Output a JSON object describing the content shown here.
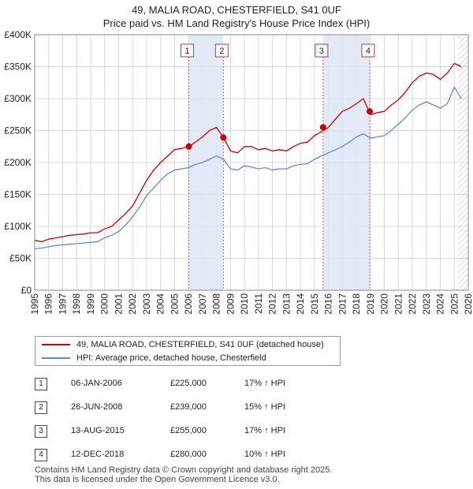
{
  "title": {
    "line1": "49, MALIA ROAD, CHESTERFIELD, S41 0UF",
    "line2": "Price paid vs. HM Land Registry's House Price Index (HPI)"
  },
  "colors": {
    "property_line": "#cc0000",
    "hpi_line": "#5b8ed0",
    "shade": "#dde6f6",
    "event_line": "#e06060",
    "grid": "#d8d8d8"
  },
  "chart_data": {
    "type": "line",
    "xlim": [
      1995,
      2026
    ],
    "ylim": [
      0,
      400000
    ],
    "y_ticks": [
      {
        "value": 0,
        "label": "£0"
      },
      {
        "value": 50000,
        "label": "£50K"
      },
      {
        "value": 100000,
        "label": "£100K"
      },
      {
        "value": 150000,
        "label": "£150K"
      },
      {
        "value": 200000,
        "label": "£200K"
      },
      {
        "value": 250000,
        "label": "£250K"
      },
      {
        "value": 300000,
        "label": "£300K"
      },
      {
        "value": 350000,
        "label": "£350K"
      },
      {
        "value": 400000,
        "label": "£400K"
      }
    ],
    "x_ticks": [
      "1995",
      "1996",
      "1997",
      "1998",
      "1999",
      "2000",
      "2001",
      "2002",
      "2003",
      "2004",
      "2005",
      "2006",
      "2007",
      "2008",
      "2009",
      "2010",
      "2011",
      "2012",
      "2013",
      "2014",
      "2015",
      "2016",
      "2017",
      "2018",
      "2019",
      "2020",
      "2021",
      "2022",
      "2023",
      "2024",
      "2025",
      "2026"
    ],
    "shaded_ranges": [
      [
        2006.02,
        2008.49
      ],
      [
        2015.62,
        2018.95
      ]
    ],
    "hatched_from": 2025.25,
    "series": [
      {
        "name": "49, MALIA ROAD, CHESTERFIELD, S41 0UF (detached house)",
        "x": [
          1995.0,
          1995.5,
          1996.0,
          1996.5,
          1997.0,
          1997.5,
          1998.0,
          1998.5,
          1999.0,
          1999.5,
          2000.0,
          2000.5,
          2001.0,
          2001.5,
          2002.0,
          2002.5,
          2003.0,
          2003.5,
          2004.0,
          2004.5,
          2005.0,
          2005.5,
          2006.0,
          2006.5,
          2007.0,
          2007.5,
          2008.0,
          2008.5,
          2009.0,
          2009.5,
          2010.0,
          2010.5,
          2011.0,
          2011.5,
          2012.0,
          2012.5,
          2013.0,
          2013.5,
          2014.0,
          2014.5,
          2015.0,
          2015.5,
          2016.0,
          2016.5,
          2017.0,
          2017.5,
          2018.0,
          2018.5,
          2019.0,
          2019.5,
          2020.0,
          2020.5,
          2021.0,
          2021.5,
          2022.0,
          2022.5,
          2023.0,
          2023.5,
          2024.0,
          2024.5,
          2025.0,
          2025.5
        ],
        "values": [
          78000,
          76000,
          80000,
          82000,
          84000,
          86000,
          87000,
          88000,
          90000,
          90000,
          96000,
          100000,
          110000,
          120000,
          132000,
          152000,
          172000,
          188000,
          200000,
          210000,
          220000,
          222000,
          225000,
          232000,
          240000,
          250000,
          255000,
          239000,
          218000,
          215000,
          225000,
          225000,
          220000,
          222000,
          218000,
          220000,
          218000,
          225000,
          230000,
          232000,
          242000,
          248000,
          255000,
          268000,
          280000,
          285000,
          292000,
          300000,
          275000,
          278000,
          280000,
          290000,
          298000,
          310000,
          325000,
          335000,
          340000,
          338000,
          330000,
          340000,
          355000,
          350000
        ]
      },
      {
        "name": "HPI: Average price, detached house, Chesterfield",
        "x": [
          1995.0,
          1995.5,
          1996.0,
          1996.5,
          1997.0,
          1997.5,
          1998.0,
          1998.5,
          1999.0,
          1999.5,
          2000.0,
          2000.5,
          2001.0,
          2001.5,
          2002.0,
          2002.5,
          2003.0,
          2003.5,
          2004.0,
          2004.5,
          2005.0,
          2005.5,
          2006.0,
          2006.5,
          2007.0,
          2007.5,
          2008.0,
          2008.5,
          2009.0,
          2009.5,
          2010.0,
          2010.5,
          2011.0,
          2011.5,
          2012.0,
          2012.5,
          2013.0,
          2013.5,
          2014.0,
          2014.5,
          2015.0,
          2015.5,
          2016.0,
          2016.5,
          2017.0,
          2017.5,
          2018.0,
          2018.5,
          2019.0,
          2019.5,
          2020.0,
          2020.5,
          2021.0,
          2021.5,
          2022.0,
          2022.5,
          2023.0,
          2023.5,
          2024.0,
          2024.5,
          2025.0,
          2025.5
        ],
        "values": [
          65000,
          66000,
          68000,
          70000,
          71000,
          72000,
          73000,
          74000,
          75000,
          76000,
          82000,
          86000,
          92000,
          102000,
          115000,
          130000,
          148000,
          160000,
          172000,
          182000,
          188000,
          190000,
          192000,
          197000,
          200000,
          205000,
          210000,
          205000,
          190000,
          188000,
          195000,
          193000,
          190000,
          192000,
          188000,
          190000,
          190000,
          195000,
          197000,
          198000,
          205000,
          210000,
          215000,
          220000,
          225000,
          232000,
          240000,
          245000,
          238000,
          240000,
          242000,
          250000,
          260000,
          270000,
          282000,
          290000,
          295000,
          290000,
          285000,
          292000,
          318000,
          300000
        ]
      }
    ],
    "sales": [
      {
        "num": "1",
        "x": 2006.02,
        "price": 225000
      },
      {
        "num": "2",
        "x": 2008.49,
        "price": 239000
      },
      {
        "num": "3",
        "x": 2015.62,
        "price": 255000
      },
      {
        "num": "4",
        "x": 2018.95,
        "price": 280000
      }
    ]
  },
  "legend": {
    "property_label": "49, MALIA ROAD, CHESTERFIELD, S41 0UF (detached house)",
    "hpi_label": "HPI: Average price, detached house, Chesterfield"
  },
  "transactions": [
    {
      "num": "1",
      "date": "06-JAN-2006",
      "price": "£225,000",
      "hpi": "17% ↑ HPI"
    },
    {
      "num": "2",
      "date": "26-JUN-2008",
      "price": "£239,000",
      "hpi": "15% ↑ HPI"
    },
    {
      "num": "3",
      "date": "13-AUG-2015",
      "price": "£255,000",
      "hpi": "17% ↑ HPI"
    },
    {
      "num": "4",
      "date": "12-DEC-2018",
      "price": "£280,000",
      "hpi": "10% ↑ HPI"
    }
  ],
  "footer": {
    "line1": "Contains HM Land Registry data © Crown copyright and database right 2025.",
    "line2": "This data is licensed under the Open Government Licence v3.0."
  }
}
